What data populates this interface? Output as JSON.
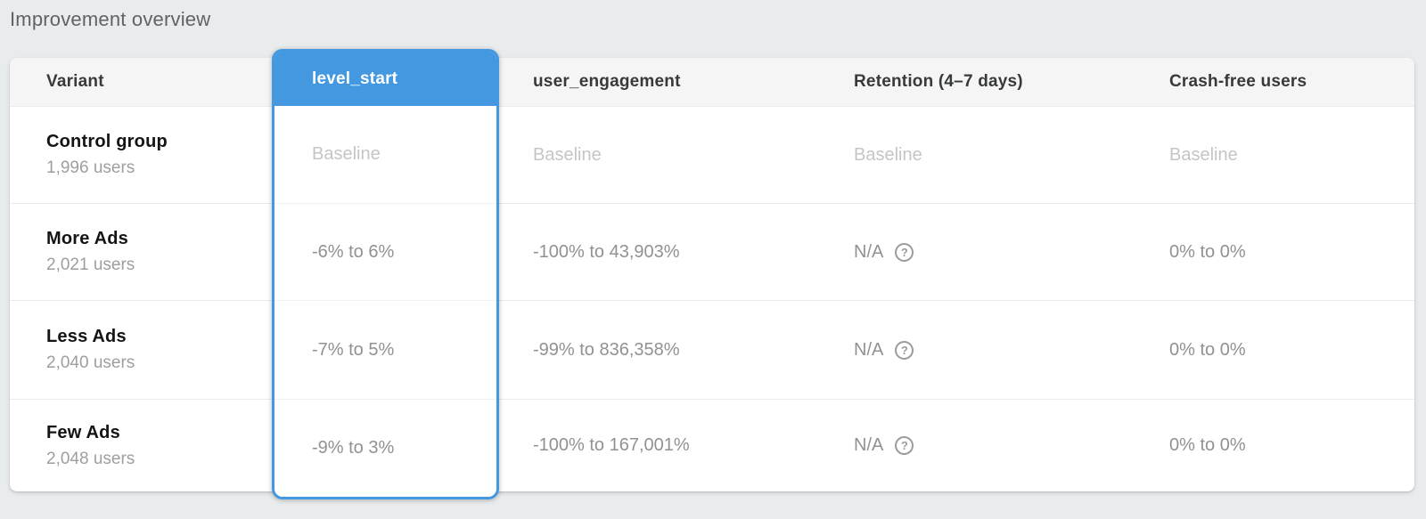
{
  "page": {
    "title": "Improvement overview"
  },
  "colors": {
    "accent_blue": "#4398e0",
    "page_background": "#e9eced",
    "header_band": "#f5f5f5",
    "baseline_text": "#c3c5c7",
    "value_text": "#919191"
  },
  "icons": {
    "help_glyph": "?"
  },
  "table": {
    "columns": [
      {
        "label": "Variant"
      },
      {
        "label": "level_start",
        "selected": true
      },
      {
        "label": "user_engagement"
      },
      {
        "label": "Retention (4–7 days)"
      },
      {
        "label": "Crash-free users"
      }
    ],
    "rows": [
      {
        "variant": "Control group",
        "users": "1,996 users",
        "level_start": "Baseline",
        "user_engagement": "Baseline",
        "retention": "Baseline",
        "crash_free": "Baseline"
      },
      {
        "variant": "More Ads",
        "users": "2,021 users",
        "level_start": "-6% to 6%",
        "user_engagement": "-100% to 43,903%",
        "retention": "N/A",
        "crash_free": "0% to 0%"
      },
      {
        "variant": "Less Ads",
        "users": "2,040 users",
        "level_start": "-7% to 5%",
        "user_engagement": "-99% to 836,358%",
        "retention": "N/A",
        "crash_free": "0% to 0%"
      },
      {
        "variant": "Few Ads",
        "users": "2,048 users",
        "level_start": "-9% to 3%",
        "user_engagement": "-100% to 167,001%",
        "retention": "N/A",
        "crash_free": "0% to 0%"
      }
    ]
  }
}
